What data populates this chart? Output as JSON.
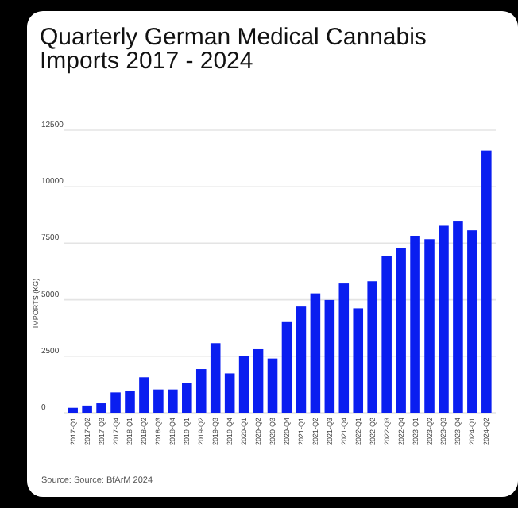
{
  "chart_data": {
    "type": "bar",
    "title": "Quarterly German Medical Cannabis Imports 2017 - 2024",
    "ylabel": "IMPORTS (KG)",
    "categories": [
      "2017-Q1",
      "2017-Q2",
      "2017-Q3",
      "2017-Q4",
      "2018-Q1",
      "2018-Q2",
      "2018-Q3",
      "2018-Q4",
      "2019-Q1",
      "2019-Q2",
      "2019-Q3",
      "2019-Q4",
      "2020-Q1",
      "2020-Q2",
      "2020-Q3",
      "2020-Q4",
      "2021-Q1",
      "2021-Q2",
      "2021-Q3",
      "2021-Q4",
      "2022-Q1",
      "2022-Q2",
      "2022-Q3",
      "2022-Q4",
      "2023-Q1",
      "2023-Q2",
      "2023-Q3",
      "2023-Q4",
      "2024-Q1",
      "2024-Q2"
    ],
    "values": [
      220,
      320,
      420,
      900,
      980,
      1570,
      1030,
      1030,
      1300,
      1930,
      3080,
      1740,
      2500,
      2810,
      2400,
      4010,
      4700,
      5280,
      4990,
      5720,
      4620,
      5820,
      6950,
      7290,
      7830,
      7680,
      8270,
      8460,
      8070,
      11600
    ],
    "color": "#0a1ef0",
    "ylim": [
      0,
      12500
    ],
    "yticks": [
      0,
      2500,
      5000,
      7500,
      10000,
      12500
    ],
    "grid": "y",
    "annotations": [
      "Source: Source: BfArM 2024"
    ]
  }
}
